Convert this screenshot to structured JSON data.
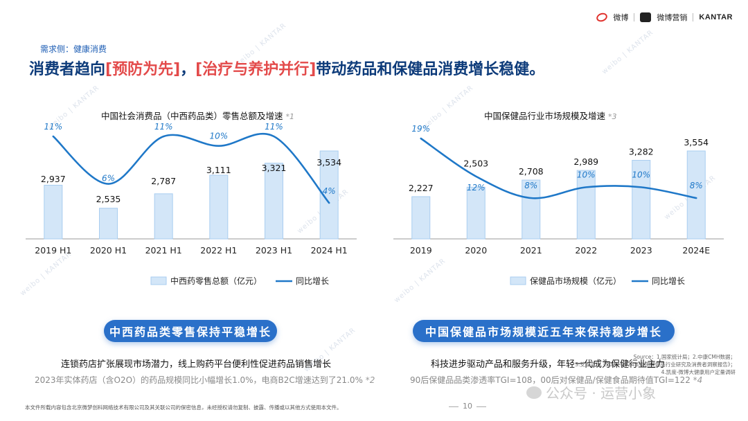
{
  "brand": {
    "weibo": "微博",
    "partner": "微博营销",
    "kantar": "KANTAR"
  },
  "section_label": "需求侧：健康消费",
  "headline": {
    "part1": "消费者趋向",
    "highlight1": "[预防为先]",
    "part2": "，",
    "highlight2": "[治疗与养护并行]",
    "part3": "带动药品和保健品消费增长稳健。"
  },
  "colors": {
    "bar_fill": "#d3e6f8",
    "bar_stroke": "#a9cdf0",
    "line": "#1f78c8",
    "banner": "#2a70c9",
    "highlight": "#e34a4a",
    "headline": "#0d3b7a"
  },
  "chart_data": [
    {
      "type": "bar",
      "title": "中国社会消费品（中西药品类）零售总额及增速",
      "title_note": "*1",
      "categories": [
        "2019 H1",
        "2020 H1",
        "2021 H1",
        "2022 H1",
        "2023 H1",
        "2024 H1"
      ],
      "series": [
        {
          "name": "中西药零售总额（亿元）",
          "type": "bar",
          "values": [
            2937,
            2535,
            2787,
            3111,
            3321,
            3534
          ],
          "labels": [
            "2,937",
            "2,535",
            "2,787",
            "3,111",
            "3,321",
            "3,534"
          ]
        },
        {
          "name": "同比增长",
          "type": "line",
          "values": [
            11,
            6,
            11,
            10,
            11,
            4
          ],
          "labels": [
            "11%",
            "6%",
            "11%",
            "10%",
            "11%",
            "4%"
          ]
        }
      ],
      "legend": "bottom"
    },
    {
      "type": "bar",
      "title": "中国保健品行业市场规模及增速",
      "title_note": "*3",
      "categories": [
        "2019",
        "2020",
        "2021",
        "2022",
        "2023",
        "2024E"
      ],
      "series": [
        {
          "name": "保健品市场规模（亿元）",
          "type": "bar",
          "values": [
            2227,
            2503,
            2708,
            2989,
            3282,
            3554
          ],
          "labels": [
            "2,227",
            "2,503",
            "2,708",
            "2,989",
            "3,282",
            "3,554"
          ]
        },
        {
          "name": "同比增长",
          "type": "line",
          "values": [
            19,
            12,
            8,
            10,
            10,
            8
          ],
          "labels": [
            "19%",
            "12%",
            "8%",
            "10%",
            "10%",
            "8%"
          ]
        }
      ],
      "legend": "bottom"
    }
  ],
  "left_panel": {
    "banner": "中西药品类零售保持平稳增长",
    "line1": "连锁药店扩张展现市场潜力，线上购药平台便利性促进药品销售增长",
    "line2": "2023年实体药店（含O2O）的药品规模同比小幅增长1.0%，电商B2C增速达到了21.0%",
    "line2_note": "*2"
  },
  "right_panel": {
    "banner": "中国保健品市场规模近五年来保持稳步增长",
    "line1": "科技进步驱动产品和服务升级，年轻一代成为保健行业主力",
    "line2": "90后保健品品类渗透率TGI=108，00后对保健品/保健食品期待值TGI=122",
    "line2_note": "*4"
  },
  "source": {
    "line1": "Source：1.国家统计局；2.中康CMH数据；",
    "line2": "3.艾媒咨询《2023-2024年中国保健品行业研究及消费者洞察报告》；",
    "line3": "4.凯度-微博大健康用户定量调研"
  },
  "footer": {
    "disclaimer": "本文件所载内容包含北京微梦创科网络技术有限公司及其关联公司的保密信息，未经授权请勿复制、披露、传播或以其他方式使用本文件。",
    "page": "10",
    "wechat": "公众号 · 运营小象"
  },
  "watermark": "weibo | KANTAR"
}
